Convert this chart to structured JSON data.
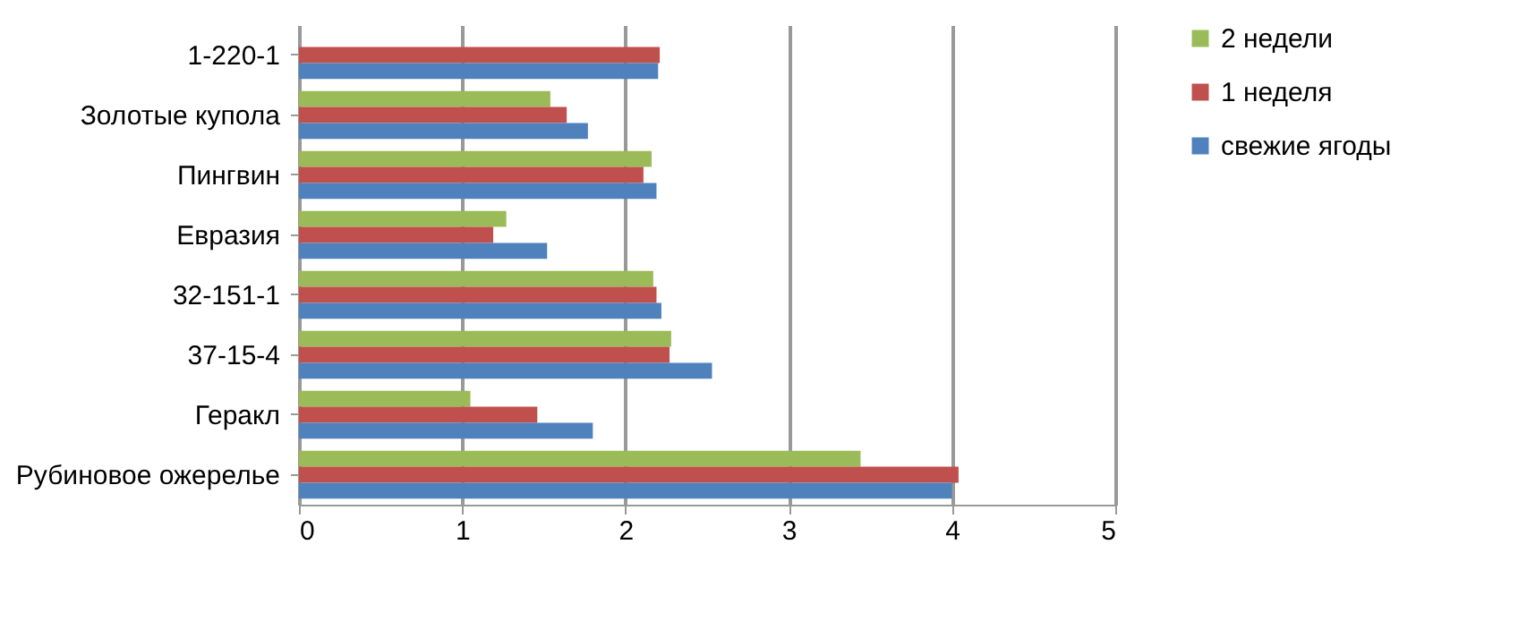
{
  "chart_data": {
    "type": "bar",
    "orientation": "horizontal",
    "categories": [
      "1-220-1",
      "Золотые купола",
      "Пингвин",
      "Евразия",
      "32-151-1",
      "37-15-4",
      "Геракл",
      "Рубиновое ожерелье"
    ],
    "series": [
      {
        "name": "2 недели",
        "color": "#9bbb59",
        "values": [
          null,
          1.54,
          2.16,
          1.27,
          2.17,
          2.28,
          1.05,
          3.44
        ]
      },
      {
        "name": "1 неделя",
        "color": "#c0504d",
        "values": [
          2.21,
          1.64,
          2.11,
          1.19,
          2.19,
          2.27,
          1.46,
          4.04
        ]
      },
      {
        "name": "свежие ягоды",
        "color": "#4f81bd",
        "values": [
          2.2,
          1.77,
          2.19,
          1.52,
          2.22,
          2.53,
          1.8,
          4.0
        ]
      }
    ],
    "xlim": [
      0,
      5
    ],
    "xticks": [
      0,
      1,
      2,
      3,
      4,
      5
    ],
    "grid": "x",
    "legend": "right"
  }
}
